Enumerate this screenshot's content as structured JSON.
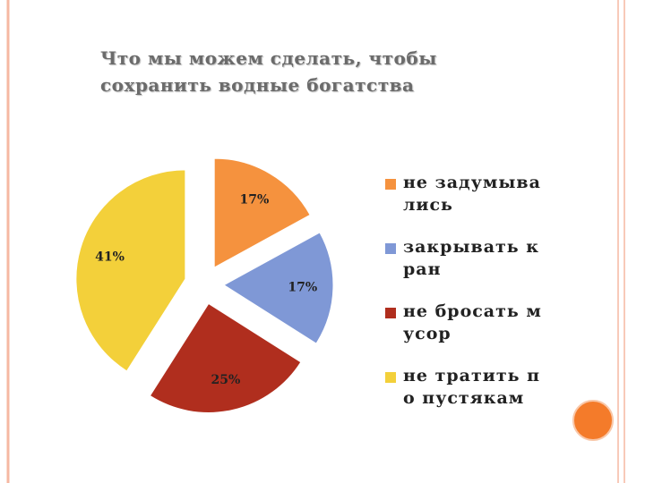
{
  "chart_data": {
    "type": "pie",
    "title": "Что мы можем сделать, чтобы сохранить водные богатства",
    "categories": [
      "не задумывались",
      "закрывать кран",
      "не бросать мусор",
      "не тратить по пустякам"
    ],
    "values": [
      17,
      17,
      25,
      41
    ],
    "value_labels": [
      "17%",
      "17%",
      "25%",
      "41%"
    ],
    "colors": [
      "#f5923e",
      "#7f98d6",
      "#b02e1e",
      "#f3d03a"
    ],
    "legend": "right"
  }
}
